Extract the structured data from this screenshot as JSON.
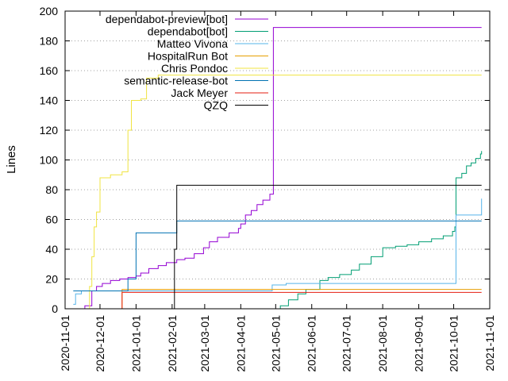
{
  "chart_data": {
    "type": "line",
    "ylabel": "Lines",
    "xlabel": "",
    "ylim": [
      0,
      200
    ],
    "xlim": [
      "2020-11-01",
      "2021-11-01"
    ],
    "y_ticks": [
      0,
      20,
      40,
      60,
      80,
      100,
      120,
      140,
      160,
      180,
      200
    ],
    "x_ticks": [
      "2020-11-01",
      "2020-12-01",
      "2021-01-01",
      "2021-02-01",
      "2021-03-01",
      "2021-04-01",
      "2021-05-01",
      "2021-06-01",
      "2021-07-01",
      "2021-08-01",
      "2021-09-01",
      "2021-10-01",
      "2021-11-01"
    ],
    "grid": "dotted horizontal",
    "legend_position": "top-left",
    "series": [
      {
        "name": "dependabot-preview[bot]",
        "color": "#9400d3",
        "points": [
          [
            "2020-11-10",
            0
          ],
          [
            "2020-11-18",
            2
          ],
          [
            "2020-11-24",
            12
          ],
          [
            "2020-11-28",
            15
          ],
          [
            "2020-12-03",
            17
          ],
          [
            "2020-12-10",
            19
          ],
          [
            "2020-12-18",
            20
          ],
          [
            "2020-12-25",
            21
          ],
          [
            "2021-01-01",
            22
          ],
          [
            "2021-01-05",
            24
          ],
          [
            "2021-01-12",
            27
          ],
          [
            "2021-01-20",
            29
          ],
          [
            "2021-01-27",
            31
          ],
          [
            "2021-02-05",
            33
          ],
          [
            "2021-02-12",
            34
          ],
          [
            "2021-02-20",
            37
          ],
          [
            "2021-02-28",
            41
          ],
          [
            "2021-03-05",
            45
          ],
          [
            "2021-03-12",
            48
          ],
          [
            "2021-03-22",
            51
          ],
          [
            "2021-03-30",
            54
          ],
          [
            "2021-04-01",
            57
          ],
          [
            "2021-04-05",
            63
          ],
          [
            "2021-04-10",
            66
          ],
          [
            "2021-04-15",
            70
          ],
          [
            "2021-04-20",
            73
          ],
          [
            "2021-04-26",
            77
          ],
          [
            "2021-04-29",
            79
          ],
          [
            "2021-04-29",
            189
          ],
          [
            "2021-10-25",
            189
          ]
        ]
      },
      {
        "name": "dependabot[bot]",
        "color": "#009e73",
        "points": [
          [
            "2021-04-28",
            0
          ],
          [
            "2021-05-05",
            2
          ],
          [
            "2021-05-12",
            6
          ],
          [
            "2021-05-20",
            10
          ],
          [
            "2021-05-27",
            13
          ],
          [
            "2021-06-08",
            19
          ],
          [
            "2021-06-15",
            21
          ],
          [
            "2021-06-25",
            23
          ],
          [
            "2021-07-05",
            26
          ],
          [
            "2021-07-12",
            30
          ],
          [
            "2021-07-22",
            35
          ],
          [
            "2021-08-01",
            41
          ],
          [
            "2021-08-12",
            42
          ],
          [
            "2021-08-22",
            43
          ],
          [
            "2021-09-01",
            45
          ],
          [
            "2021-09-12",
            47
          ],
          [
            "2021-09-22",
            49
          ],
          [
            "2021-09-30",
            52
          ],
          [
            "2021-10-02",
            55
          ],
          [
            "2021-10-03",
            88
          ],
          [
            "2021-10-08",
            91
          ],
          [
            "2021-10-12",
            96
          ],
          [
            "2021-10-16",
            98
          ],
          [
            "2021-10-20",
            101
          ],
          [
            "2021-10-24",
            104
          ],
          [
            "2021-10-25",
            106
          ]
        ]
      },
      {
        "name": "Matteo Vivona",
        "color": "#56b4e9",
        "points": [
          [
            "2020-11-08",
            3
          ],
          [
            "2020-11-10",
            10
          ],
          [
            "2020-11-15",
            12
          ],
          [
            "2021-04-28",
            16
          ],
          [
            "2021-05-10",
            17
          ],
          [
            "2021-10-02",
            17
          ],
          [
            "2021-10-03",
            63
          ],
          [
            "2021-10-24",
            63
          ],
          [
            "2021-10-25",
            74
          ]
        ]
      },
      {
        "name": "HospitalRun Bot",
        "color": "#e69f00",
        "points": [
          [
            "2020-12-18",
            0
          ],
          [
            "2020-12-20",
            13
          ],
          [
            "2021-10-25",
            13
          ]
        ]
      },
      {
        "name": "Chris Pondoc",
        "color": "#f0e442",
        "points": [
          [
            "2020-11-20",
            0
          ],
          [
            "2020-11-22",
            15
          ],
          [
            "2020-11-24",
            35
          ],
          [
            "2020-11-26",
            55
          ],
          [
            "2020-11-28",
            65
          ],
          [
            "2020-12-01",
            88
          ],
          [
            "2020-12-08",
            88
          ],
          [
            "2020-12-10",
            90
          ],
          [
            "2020-12-20",
            92
          ],
          [
            "2020-12-25",
            120
          ],
          [
            "2020-12-28",
            140
          ],
          [
            "2021-01-05",
            141
          ],
          [
            "2021-01-10",
            155
          ],
          [
            "2021-01-20",
            157
          ],
          [
            "2021-10-25",
            157
          ]
        ]
      },
      {
        "name": "semantic-release-bot",
        "color": "#0072b2",
        "points": [
          [
            "2020-11-08",
            12
          ],
          [
            "2020-12-25",
            12
          ],
          [
            "2020-12-25",
            20
          ],
          [
            "2021-01-01",
            20
          ],
          [
            "2021-01-01",
            51
          ],
          [
            "2021-02-05",
            51
          ],
          [
            "2021-02-05",
            59
          ],
          [
            "2021-10-25",
            59
          ]
        ]
      },
      {
        "name": "Jack Meyer",
        "color": "#e51e10",
        "points": [
          [
            "2020-12-18",
            0
          ],
          [
            "2020-12-20",
            11
          ],
          [
            "2021-10-25",
            11
          ]
        ]
      },
      {
        "name": "QZQ",
        "color": "#000000",
        "points": [
          [
            "2021-01-31",
            0
          ],
          [
            "2021-02-03",
            40
          ],
          [
            "2021-02-05",
            83
          ],
          [
            "2021-10-25",
            83
          ]
        ]
      }
    ]
  }
}
